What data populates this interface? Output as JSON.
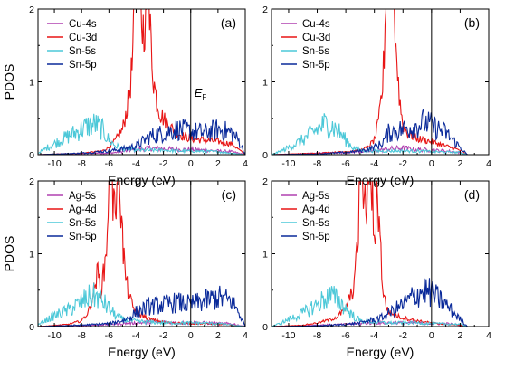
{
  "figure": {
    "ylabel": "PDOS",
    "xlabel": "Energy (eV)",
    "fermi_label": "E",
    "fermi_sub": "F"
  },
  "chart_data": [
    {
      "type": "line",
      "panel": "(a)",
      "xlim": [
        -11.2,
        4
      ],
      "ylim": [
        0,
        2
      ],
      "xticks": [
        "-10",
        "-8",
        "-6",
        "-4",
        "-2",
        "0",
        "2",
        "4"
      ],
      "yticks": [
        "0",
        "1",
        "2"
      ],
      "ylabel": "PDOS",
      "fermi_label_shown": true,
      "colors": {
        "s_metal": "#b040b0",
        "d_metal": "#e81515",
        "sn_s": "#4cc8d8",
        "sn_p": "#0a2a9a"
      },
      "series": [
        {
          "name": "Cu-4s",
          "key": "s_metal",
          "x": [
            -11.2,
            -9,
            -7,
            -6,
            -5,
            -4,
            -3,
            -2,
            -1,
            0,
            1,
            2,
            3,
            4
          ],
          "values": [
            0.0,
            0.01,
            0.02,
            0.02,
            0.04,
            0.07,
            0.09,
            0.08,
            0.07,
            0.07,
            0.06,
            0.05,
            0.04,
            0.0
          ]
        },
        {
          "name": "Cu-3d",
          "key": "d_metal",
          "x": [
            -11.2,
            -8,
            -6.5,
            -6,
            -5.5,
            -5,
            -4.6,
            -4.3,
            -4.1,
            -3.9,
            -3.7,
            -3.5,
            -3.3,
            -3.1,
            -2.9,
            -2.7,
            -2.5,
            -2.2,
            -1.8,
            -1.5,
            -1,
            -0.5,
            0,
            1,
            2,
            3,
            4
          ],
          "values": [
            0.0,
            0.02,
            0.05,
            0.1,
            0.2,
            0.35,
            0.7,
            1.2,
            2.0,
            2.0,
            2.0,
            1.7,
            2.0,
            2.0,
            1.5,
            1.0,
            0.75,
            0.55,
            0.45,
            0.38,
            0.3,
            0.25,
            0.22,
            0.2,
            0.18,
            0.15,
            0.0
          ]
        },
        {
          "name": "Sn-5s",
          "key": "sn_s",
          "x": [
            -11.2,
            -10.5,
            -10,
            -9,
            -8.5,
            -8,
            -7.5,
            -7,
            -6.5,
            -6,
            -5.5,
            -5,
            -4,
            -3,
            -2,
            -1,
            0,
            2,
            4
          ],
          "values": [
            0.02,
            0.1,
            0.15,
            0.25,
            0.3,
            0.35,
            0.4,
            0.42,
            0.35,
            0.2,
            0.12,
            0.08,
            0.06,
            0.06,
            0.06,
            0.05,
            0.05,
            0.04,
            0.0
          ]
        },
        {
          "name": "Sn-5p",
          "key": "sn_p",
          "x": [
            -11.2,
            -8,
            -6,
            -5,
            -4.5,
            -4,
            -3,
            -2,
            -1,
            0,
            1,
            2,
            3,
            3.5,
            4
          ],
          "values": [
            0.0,
            0.02,
            0.05,
            0.08,
            0.1,
            0.12,
            0.25,
            0.3,
            0.35,
            0.32,
            0.3,
            0.35,
            0.3,
            0.2,
            0.0
          ]
        }
      ]
    },
    {
      "type": "line",
      "panel": "(b)",
      "xlim": [
        -11.2,
        4
      ],
      "ylim": [
        0,
        2
      ],
      "xticks": [
        "-10",
        "-8",
        "-6",
        "-4",
        "-2",
        "0",
        "2",
        "4"
      ],
      "yticks": [
        "0",
        "1",
        "2"
      ],
      "ylabel": "",
      "fermi_label_shown": false,
      "colors": {
        "s_metal": "#b040b0",
        "d_metal": "#e81515",
        "sn_s": "#4cc8d8",
        "sn_p": "#0a2a9a"
      },
      "series": [
        {
          "name": "Cu-4s",
          "key": "s_metal",
          "x": [
            -11.2,
            -8,
            -6,
            -4,
            -3,
            -2,
            -1,
            0,
            1,
            2,
            2.5,
            4
          ],
          "values": [
            0.0,
            0.02,
            0.03,
            0.05,
            0.08,
            0.09,
            0.07,
            0.06,
            0.05,
            0.03,
            0.0,
            0.0
          ]
        },
        {
          "name": "Cu-3d",
          "key": "d_metal",
          "x": [
            -11.2,
            -8,
            -6,
            -5,
            -4.5,
            -4,
            -3.7,
            -3.4,
            -3.2,
            -3.0,
            -2.8,
            -2.6,
            -2.4,
            -2.2,
            -2.0,
            -1.7,
            -1.3,
            -1,
            -0.5,
            0,
            1,
            2,
            2.5,
            4
          ],
          "values": [
            0.0,
            0.02,
            0.04,
            0.06,
            0.1,
            0.2,
            0.45,
            1.0,
            2.0,
            2.0,
            2.0,
            2.0,
            1.2,
            0.7,
            0.4,
            0.3,
            0.25,
            0.22,
            0.2,
            0.18,
            0.12,
            0.06,
            0.0,
            0.0
          ]
        },
        {
          "name": "Sn-5s",
          "key": "sn_s",
          "x": [
            -11.2,
            -10.5,
            -10,
            -9,
            -8.5,
            -8,
            -7.5,
            -7,
            -6.5,
            -6,
            -5.5,
            -5,
            -4,
            -3,
            -2,
            -1,
            0,
            2,
            2.5,
            4
          ],
          "values": [
            0.0,
            0.05,
            0.1,
            0.2,
            0.28,
            0.35,
            0.42,
            0.4,
            0.32,
            0.2,
            0.1,
            0.06,
            0.05,
            0.05,
            0.05,
            0.05,
            0.04,
            0.03,
            0.0,
            0.0
          ]
        },
        {
          "name": "Sn-5p",
          "key": "sn_p",
          "x": [
            -11.2,
            -8,
            -6,
            -5,
            -4,
            -3.5,
            -3,
            -2,
            -1,
            -0.5,
            0,
            0.5,
            1,
            1.5,
            2,
            2.5,
            4
          ],
          "values": [
            0.0,
            0.01,
            0.03,
            0.05,
            0.1,
            0.15,
            0.3,
            0.35,
            0.4,
            0.45,
            0.4,
            0.35,
            0.3,
            0.2,
            0.1,
            0.0,
            0.0
          ]
        }
      ]
    },
    {
      "type": "line",
      "panel": "(c)",
      "xlim": [
        -11.2,
        4
      ],
      "ylim": [
        0,
        2
      ],
      "xticks": [
        "-10",
        "-8",
        "-6",
        "-4",
        "-2",
        "0",
        "2",
        "4"
      ],
      "yticks": [
        "0",
        "1",
        "2"
      ],
      "ylabel": "PDOS",
      "fermi_label_shown": false,
      "colors": {
        "s_metal": "#b040b0",
        "d_metal": "#e81515",
        "sn_s": "#4cc8d8",
        "sn_p": "#0a2a9a"
      },
      "series": [
        {
          "name": "Ag-5s",
          "key": "s_metal",
          "x": [
            -11.2,
            -9,
            -7,
            -6,
            -5,
            -4,
            -3,
            -2,
            -1,
            0,
            1,
            2,
            3,
            4
          ],
          "values": [
            0.0,
            0.01,
            0.02,
            0.03,
            0.04,
            0.05,
            0.06,
            0.06,
            0.05,
            0.05,
            0.05,
            0.04,
            0.04,
            0.0
          ]
        },
        {
          "name": "Ag-4d",
          "key": "d_metal",
          "x": [
            -11.2,
            -9,
            -8,
            -7.5,
            -7.2,
            -7,
            -6.8,
            -6.6,
            -6.4,
            -6.2,
            -6.0,
            -5.8,
            -5.6,
            -5.4,
            -5.2,
            -5.0,
            -4.8,
            -4.6,
            -4.4,
            -4.2,
            -4.0,
            -3.5,
            -3,
            -2,
            -1,
            0,
            1,
            2,
            3,
            4
          ],
          "values": [
            0.0,
            0.03,
            0.08,
            0.2,
            0.4,
            0.6,
            0.75,
            0.5,
            0.7,
            1.0,
            2.0,
            2.0,
            1.5,
            2.0,
            2.0,
            1.2,
            0.7,
            0.5,
            0.35,
            0.25,
            0.2,
            0.15,
            0.1,
            0.06,
            0.05,
            0.04,
            0.04,
            0.03,
            0.02,
            0.0
          ]
        },
        {
          "name": "Sn-5s",
          "key": "sn_s",
          "x": [
            -11.2,
            -10.5,
            -10,
            -9,
            -8.5,
            -8,
            -7.5,
            -7,
            -6.5,
            -6,
            -5.5,
            -5,
            -4,
            -3,
            -2,
            -1,
            0,
            2,
            4
          ],
          "values": [
            0.02,
            0.1,
            0.15,
            0.22,
            0.28,
            0.33,
            0.4,
            0.42,
            0.35,
            0.25,
            0.15,
            0.1,
            0.07,
            0.06,
            0.05,
            0.05,
            0.05,
            0.04,
            0.0
          ]
        },
        {
          "name": "Sn-5p",
          "key": "sn_p",
          "x": [
            -11.2,
            -8,
            -6,
            -5,
            -4.5,
            -4,
            -3,
            -2,
            -1,
            0,
            1,
            2,
            3,
            3.5,
            4
          ],
          "values": [
            0.0,
            0.02,
            0.04,
            0.08,
            0.12,
            0.2,
            0.28,
            0.3,
            0.33,
            0.3,
            0.35,
            0.4,
            0.35,
            0.2,
            0.0
          ]
        }
      ]
    },
    {
      "type": "line",
      "panel": "(d)",
      "xlim": [
        -11.2,
        4
      ],
      "ylim": [
        0,
        2
      ],
      "xticks": [
        "-10",
        "-8",
        "-6",
        "-4",
        "-2",
        "0",
        "2",
        "4"
      ],
      "yticks": [
        "0",
        "1",
        "2"
      ],
      "ylabel": "",
      "fermi_label_shown": false,
      "colors": {
        "s_metal": "#b040b0",
        "d_metal": "#e81515",
        "sn_s": "#4cc8d8",
        "sn_p": "#0a2a9a"
      },
      "series": [
        {
          "name": "Ag-5s",
          "key": "s_metal",
          "x": [
            -11.2,
            -8,
            -6,
            -4,
            -3,
            -2,
            -1,
            0,
            1,
            2,
            2.5,
            4
          ],
          "values": [
            0.0,
            0.02,
            0.03,
            0.05,
            0.05,
            0.05,
            0.05,
            0.04,
            0.04,
            0.02,
            0.0,
            0.0
          ]
        },
        {
          "name": "Ag-4d",
          "key": "d_metal",
          "x": [
            -11.2,
            -9,
            -8,
            -7,
            -6.5,
            -6,
            -5.5,
            -5.2,
            -5.0,
            -4.8,
            -4.6,
            -4.4,
            -4.2,
            -4.0,
            -3.8,
            -3.6,
            -3.4,
            -3.2,
            -3.0,
            -2.5,
            -2,
            -1.5,
            -1,
            0,
            1,
            2,
            2.5,
            4
          ],
          "values": [
            0.0,
            0.02,
            0.05,
            0.1,
            0.15,
            0.25,
            0.5,
            1.0,
            2.0,
            2.0,
            1.5,
            2.0,
            2.0,
            1.0,
            2.0,
            1.2,
            0.5,
            0.3,
            0.2,
            0.15,
            0.12,
            0.1,
            0.08,
            0.05,
            0.03,
            0.02,
            0.0,
            0.0
          ]
        },
        {
          "name": "Sn-5s",
          "key": "sn_s",
          "x": [
            -11.2,
            -10.5,
            -10,
            -9,
            -8.5,
            -8,
            -7.5,
            -7,
            -6.5,
            -6,
            -5.5,
            -5,
            -4,
            -3,
            -2,
            -1,
            0,
            2,
            2.5,
            4
          ],
          "values": [
            0.0,
            0.05,
            0.1,
            0.18,
            0.25,
            0.3,
            0.38,
            0.42,
            0.35,
            0.25,
            0.15,
            0.08,
            0.06,
            0.05,
            0.05,
            0.05,
            0.04,
            0.03,
            0.0,
            0.0
          ]
        },
        {
          "name": "Sn-5p",
          "key": "sn_p",
          "x": [
            -11.2,
            -8,
            -6,
            -5,
            -4,
            -3.5,
            -3,
            -2,
            -1.5,
            -1,
            -0.5,
            0,
            0.5,
            1,
            1.5,
            2,
            2.5,
            4
          ],
          "values": [
            0.0,
            0.01,
            0.03,
            0.05,
            0.1,
            0.12,
            0.18,
            0.3,
            0.38,
            0.45,
            0.5,
            0.45,
            0.38,
            0.3,
            0.2,
            0.1,
            0.0,
            0.0
          ]
        }
      ]
    }
  ]
}
